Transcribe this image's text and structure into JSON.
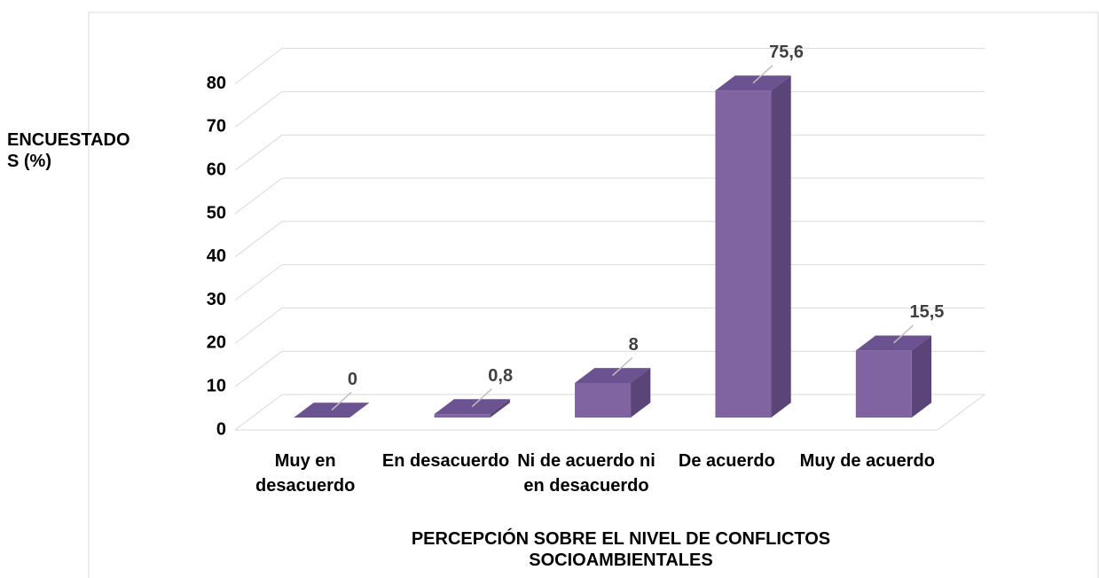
{
  "chart_data": {
    "type": "bar3d",
    "y_axis_label": "ENCUESTADOS (%)",
    "x_axis_label": "PERCEPCIÓN SOBRE EL NIVEL DE CONFLICTOS SOCIOAMBIENTALES",
    "categories": [
      "Muy en desacuerdo",
      "En desacuerdo",
      "Ni de acuerdo ni en desacuerdo",
      "De acuerdo",
      "Muy de acuerdo"
    ],
    "values": [
      0,
      0.8,
      8,
      75.6,
      15.5
    ],
    "value_labels": [
      "0",
      "0,8",
      "8",
      "75,6",
      "15,5"
    ],
    "color": "#8064a2",
    "ylim": [
      0,
      80
    ],
    "yticks": [
      0,
      10,
      20,
      30,
      40,
      50,
      60,
      70,
      80
    ],
    "grid": true
  }
}
